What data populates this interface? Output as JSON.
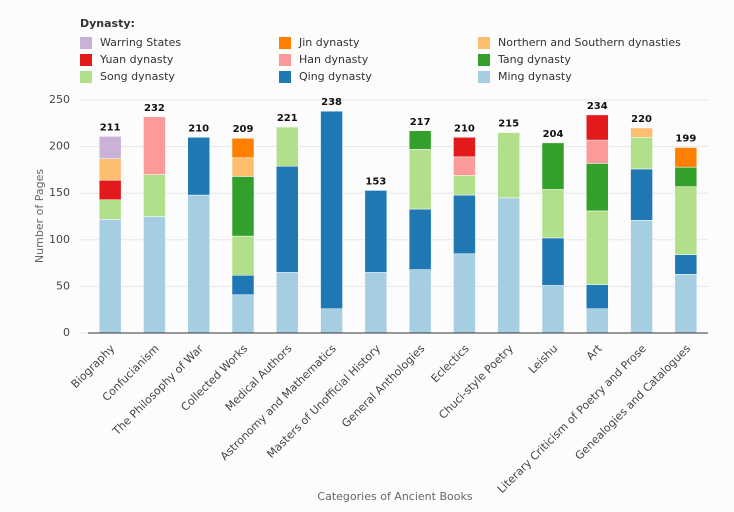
{
  "chart_data": {
    "type": "stacked-bar",
    "legend_title": "Dynasty:",
    "y_label": "Number of Pages",
    "x_label": "Categories of Ancient Books",
    "categories": [
      "Biography",
      "Confucianism",
      "The Philosophy of War",
      "Collected Works",
      "Medical Authors",
      "Astronomy and Mathematics",
      "Masters of Unofficial History",
      "General Anthologies",
      "Eclectics",
      "Chuci-style Poetry",
      "Leishu",
      "Art",
      "Literary Criticism of Poetry and Prose",
      "Genealogies and Catalogues"
    ],
    "series": [
      {
        "name": "Ming dynasty",
        "color": "#a6cee3",
        "values": [
          122,
          125,
          148,
          41,
          65,
          26,
          65,
          68,
          85,
          145,
          51,
          26,
          121,
          63
        ]
      },
      {
        "name": "Qing dynasty",
        "color": "#1f78b4",
        "values": [
          0,
          0,
          62,
          21,
          114,
          212,
          88,
          65,
          63,
          0,
          51,
          26,
          55,
          21
        ]
      },
      {
        "name": "Song dynasty",
        "color": "#b2df8a",
        "values": [
          21,
          45,
          0,
          42,
          42,
          0,
          0,
          64,
          21,
          70,
          52,
          79,
          34,
          73
        ]
      },
      {
        "name": "Tang dynasty",
        "color": "#33a02c",
        "values": [
          0,
          0,
          0,
          64,
          0,
          0,
          0,
          20,
          0,
          0,
          50,
          51,
          0,
          21
        ]
      },
      {
        "name": "Han dynasty",
        "color": "#fb9a99",
        "values": [
          0,
          62,
          0,
          0,
          0,
          0,
          0,
          0,
          20,
          0,
          0,
          25,
          0,
          0
        ]
      },
      {
        "name": "Yuan dynasty",
        "color": "#e31a1c",
        "values": [
          21,
          0,
          0,
          0,
          0,
          0,
          0,
          0,
          21,
          0,
          0,
          27,
          0,
          0
        ]
      },
      {
        "name": "Northern and Southern dynasties",
        "color": "#fdbf6f",
        "values": [
          23,
          0,
          0,
          20,
          0,
          0,
          0,
          0,
          0,
          0,
          0,
          0,
          10,
          0
        ]
      },
      {
        "name": "Jin dynasty",
        "color": "#ff7f00",
        "values": [
          0,
          0,
          0,
          21,
          0,
          0,
          0,
          0,
          0,
          0,
          0,
          0,
          0,
          21
        ]
      },
      {
        "name": "Warring States",
        "color": "#cab2d6",
        "values": [
          24,
          0,
          0,
          0,
          0,
          0,
          0,
          0,
          0,
          0,
          0,
          0,
          0,
          0
        ]
      }
    ],
    "totals": [
      211,
      232,
      210,
      209,
      221,
      238,
      153,
      217,
      210,
      215,
      204,
      234,
      220,
      199
    ],
    "ylim": [
      0,
      250
    ],
    "yticks": [
      0,
      50,
      100,
      150,
      200,
      250
    ],
    "grid": true
  }
}
